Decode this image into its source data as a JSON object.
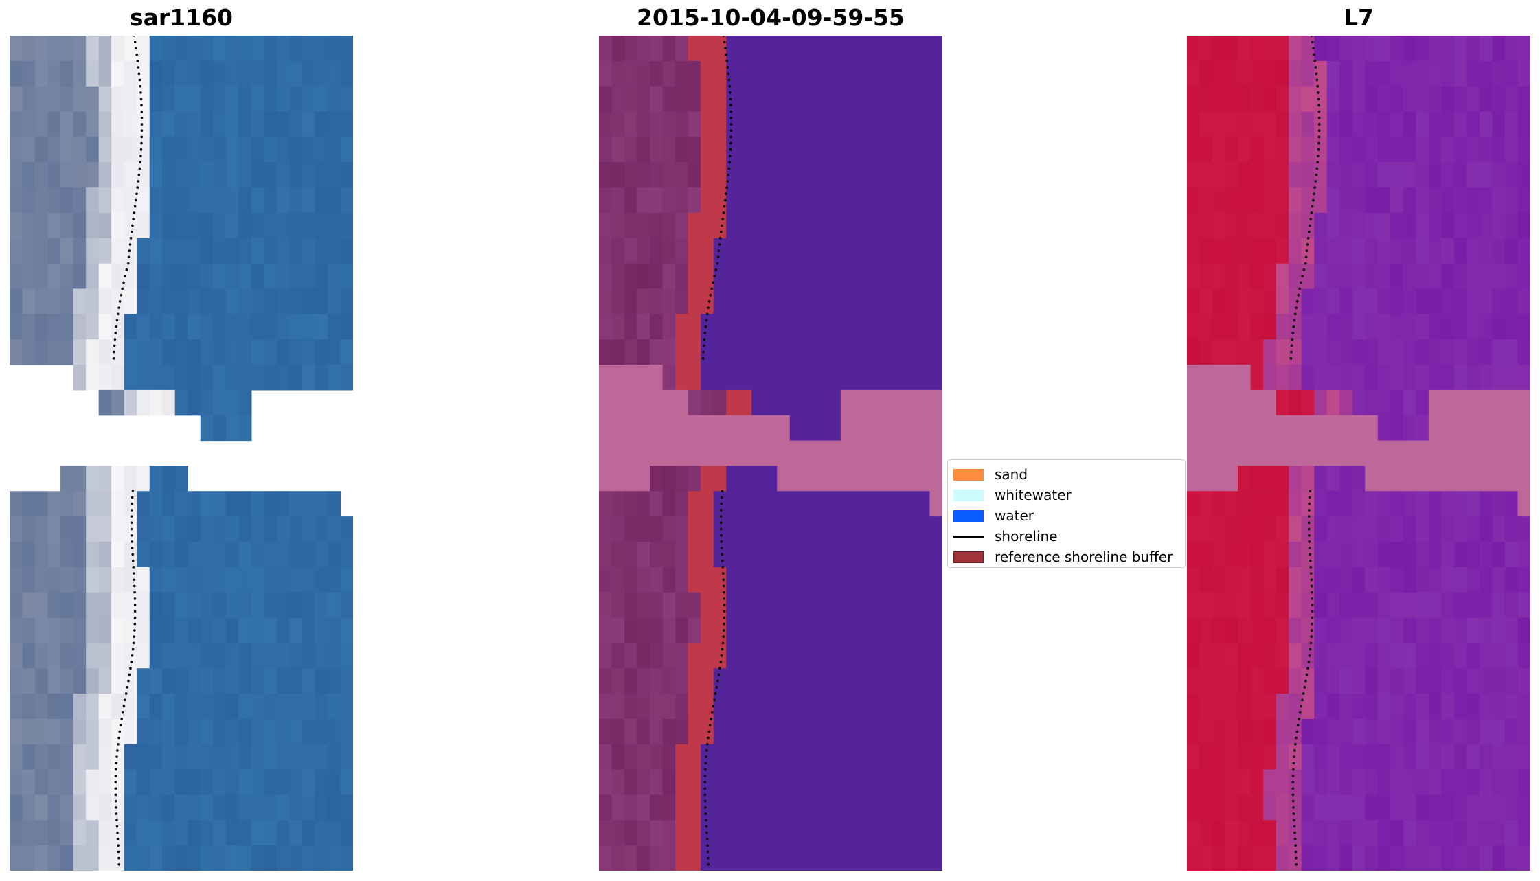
{
  "panels": {
    "left": {
      "title": "sar1160"
    },
    "center": {
      "title": "2015-10-04-09-59-55"
    },
    "right": {
      "title": "L7"
    }
  },
  "legend": {
    "items": [
      {
        "label": "sand",
        "color": "#ff8c3c",
        "kind": "patch"
      },
      {
        "label": "whitewater",
        "color": "#cffcff",
        "kind": "patch"
      },
      {
        "label": "water",
        "color": "#0a5cff",
        "kind": "patch"
      },
      {
        "label": "shoreline",
        "color": "#000000",
        "kind": "line"
      },
      {
        "label": "reference shoreline buffer",
        "color": "#a0343a",
        "kind": "patch",
        "edge": "#6e1f24"
      }
    ]
  },
  "colors": {
    "rgb_water": "#2c64a0",
    "rgb_sand": "#e8e8ee",
    "rgb_land": "#7c8aa6",
    "class_water": "#55249a",
    "class_buffer": "#c0394a",
    "class_land": "#8a3a78",
    "nodata": "#bd6898",
    "mndwi_land": "#c8103c",
    "mndwi_water": "#7a1ea8"
  }
}
